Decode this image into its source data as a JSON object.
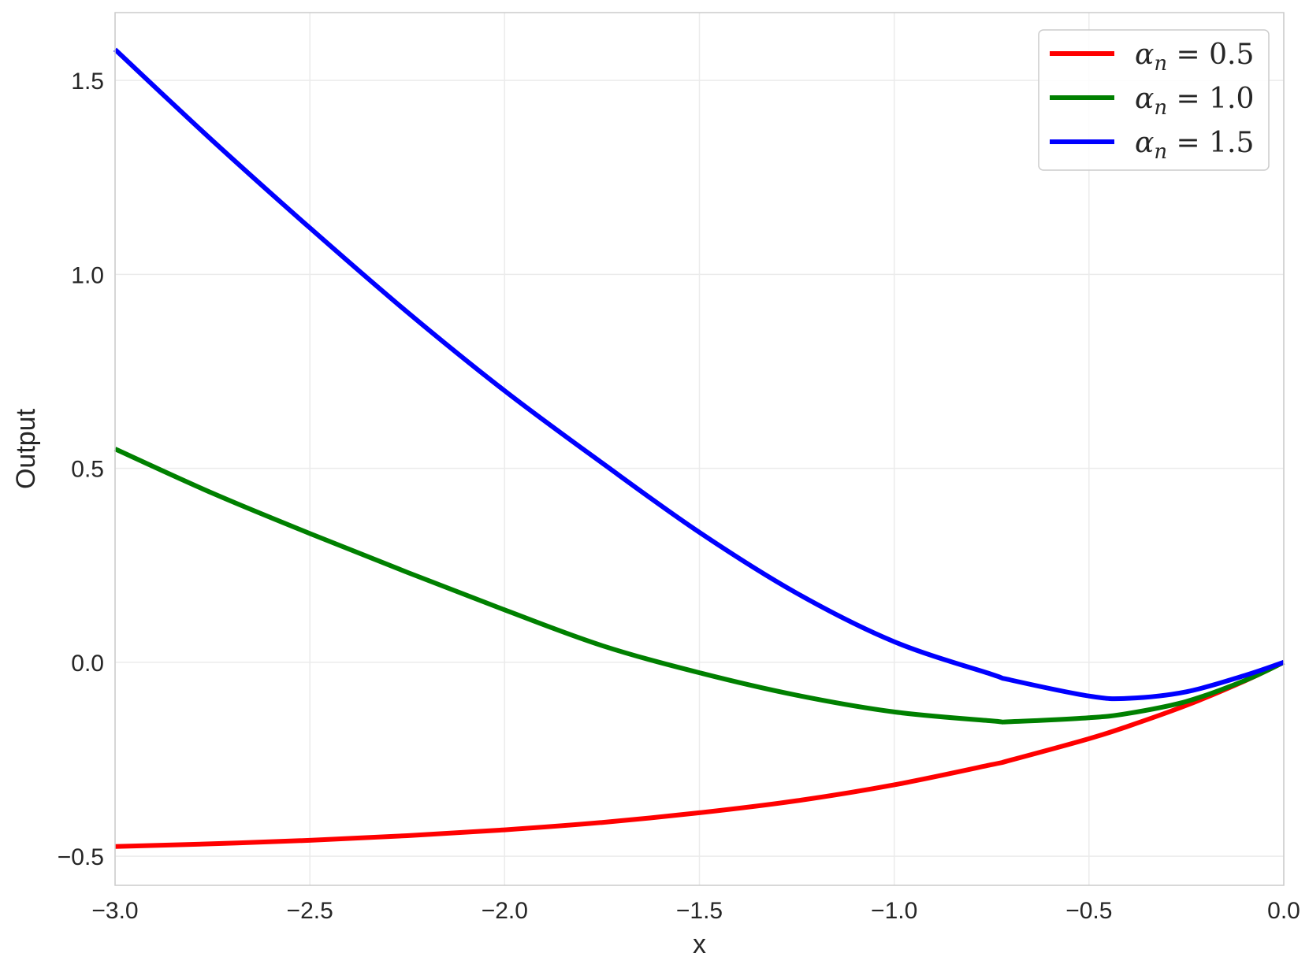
{
  "chart_data": {
    "type": "line",
    "title": "",
    "xlabel": "x",
    "ylabel": "Output",
    "xlim": [
      -3.0,
      0.0
    ],
    "ylim": [
      -0.575,
      1.675
    ],
    "grid": true,
    "legend_position": "top-right",
    "x_ticks": [
      -3.0,
      -2.5,
      -2.0,
      -1.5,
      -1.0,
      -0.5,
      0.0
    ],
    "x_tick_labels": [
      "−3.0",
      "−2.5",
      "−2.0",
      "−1.5",
      "−1.0",
      "−0.5",
      "0.0"
    ],
    "y_ticks": [
      -0.5,
      0.0,
      0.5,
      1.0,
      1.5
    ],
    "y_tick_labels": [
      "−0.5",
      "0.0",
      "0.5",
      "1.0",
      "1.5"
    ],
    "x": [
      -3.0,
      -2.75,
      -2.5,
      -2.25,
      -2.0,
      -1.75,
      -1.5,
      -1.25,
      -1.0,
      -0.75,
      -0.7,
      -0.5,
      -0.4,
      -0.25,
      -0.1,
      0.0
    ],
    "series": [
      {
        "name": "αn = 0.5",
        "legend_symbol": "α",
        "legend_subscript": "n",
        "legend_value": " = 0.5",
        "color": "#ff0000",
        "values": [
          -0.475,
          -0.468,
          -0.459,
          -0.447,
          -0.432,
          -0.413,
          -0.388,
          -0.357,
          -0.316,
          -0.264,
          -0.252,
          -0.197,
          -0.165,
          -0.111,
          -0.048,
          0.0
        ]
      },
      {
        "name": "αn = 1.0",
        "legend_symbol": "α",
        "legend_subscript": "n",
        "legend_value": " = 1.0",
        "color": "#008000",
        "values": [
          0.55,
          0.436,
          0.332,
          0.232,
          0.135,
          0.043,
          -0.027,
          -0.085,
          -0.128,
          -0.151,
          -0.153,
          -0.143,
          -0.132,
          -0.101,
          -0.047,
          0.0
        ]
      },
      {
        "name": "αn = 1.5",
        "legend_symbol": "α",
        "legend_subscript": "n",
        "legend_value": " = 1.5",
        "color": "#0000ff",
        "values": [
          1.58,
          1.345,
          1.12,
          0.903,
          0.7,
          0.514,
          0.335,
          0.178,
          0.053,
          -0.031,
          -0.046,
          -0.087,
          -0.093,
          -0.076,
          -0.034,
          0.0
        ]
      }
    ]
  }
}
